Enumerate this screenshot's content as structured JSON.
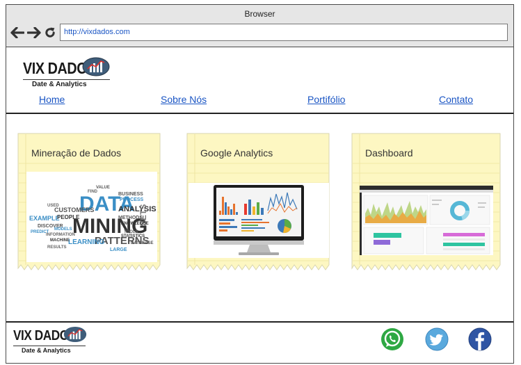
{
  "browser": {
    "title": "Browser",
    "url": "http://vixdados.com"
  },
  "header": {
    "logo_title": "VIX DADOS",
    "logo_subtitle": "Date & Analytics"
  },
  "nav": {
    "items": [
      {
        "label": "Home"
      },
      {
        "label": "Sobre Nós"
      },
      {
        "label": "Portifólio"
      },
      {
        "label": "Contato"
      }
    ]
  },
  "cards": [
    {
      "title": "Mineração de Dados",
      "words": [
        "DATA",
        "MINING",
        "PATTERNS",
        "LEARNING",
        "ANALYSIS",
        "CUSTOMERS",
        "EXAMPLE",
        "BUSINESS",
        "SETS",
        "LARGE",
        "PEOPLE",
        "METHODS",
        "DISCOVER",
        "PROCESS",
        "TOOLS",
        "STATISTICS",
        "INFORMATION",
        "FIND",
        "USED",
        "MACHINE",
        "RESULTS",
        "PREDICT",
        "VALUE",
        "DATABASE",
        "MODELS",
        "KNOWLEDGE"
      ]
    },
    {
      "title": "Google Analytics"
    },
    {
      "title": "Dashboard"
    }
  ],
  "footer": {
    "logo_title": "VIX DADOS",
    "logo_subtitle": "Date & Analytics",
    "social": [
      {
        "name": "WhatsApp",
        "color": "#2ea843"
      },
      {
        "name": "Twitter",
        "color": "#5aa9dd"
      },
      {
        "name": "Facebook",
        "color": "#2f55a4"
      }
    ]
  }
}
